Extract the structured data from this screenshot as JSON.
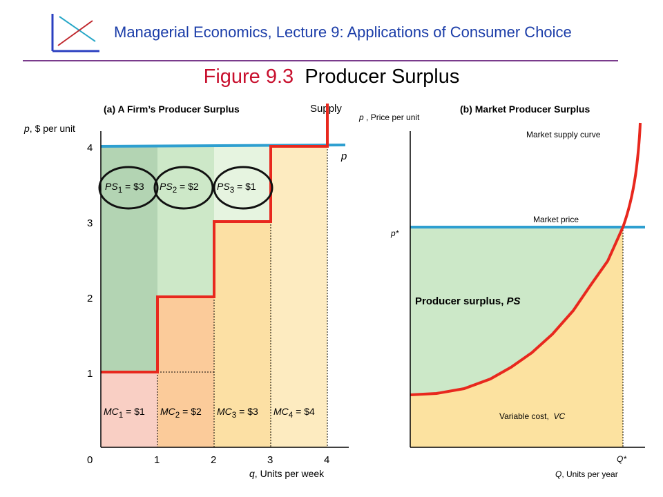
{
  "header": {
    "title": "Managerial Economics, Lecture 9: Applications of Consumer Choice",
    "logo_icon": "axes-crossing-lines-icon"
  },
  "slide_title": {
    "figure_label": "Figure 9.3",
    "text": "Producer Surplus"
  },
  "panel_a": {
    "title": "(a) A Firm’s Producer Surplus",
    "ylabel_sym": "p",
    "ylabel_text": ", $ per unit",
    "xlabel_sym": "q",
    "xlabel_text": ", Units per week",
    "y_ticks": [
      "0",
      "1",
      "2",
      "3",
      "4"
    ],
    "x_ticks": [
      "1",
      "2",
      "3",
      "4"
    ],
    "supply_label": "Supply",
    "price_label": "p",
    "ps_labels": [
      {
        "sym": "PS",
        "sub": "1",
        "val": " = $3"
      },
      {
        "sym": "PS",
        "sub": "2",
        "val": " = $2"
      },
      {
        "sym": "PS",
        "sub": "3",
        "val": " = $1"
      }
    ],
    "mc_labels": [
      {
        "sym": "MC",
        "sub": "1",
        "val": " = $1"
      },
      {
        "sym": "MC",
        "sub": "2",
        "val": " = $2"
      },
      {
        "sym": "MC",
        "sub": "3",
        "val": " = $3"
      },
      {
        "sym": "MC",
        "sub": "4",
        "val": " = $4"
      }
    ],
    "chart_data": {
      "type": "area",
      "price": 4,
      "marginal_cost": [
        1,
        2,
        3,
        4
      ],
      "producer_surplus": [
        3,
        2,
        1,
        0
      ],
      "x_range": [
        0,
        4
      ],
      "y_range": [
        0,
        4
      ]
    }
  },
  "panel_b": {
    "title": "(b) Market Producer Surplus",
    "ylabel_sym": "p",
    "ylabel_text": " , Price per unit",
    "xlabel_sym": "Q",
    "xlabel_text": ", Units per year",
    "supply_curve_label": "Market supply curve",
    "market_price_label": "Market price",
    "p_star_label": "p*",
    "q_star_label": "Q*",
    "ps_area_label": "Producer surplus,",
    "ps_area_sym": "PS",
    "vc_label": "Variable cost,",
    "vc_sym": "VC"
  },
  "colors": {
    "header_blue": "#1a3ca8",
    "title_red": "#c8102e",
    "supply_red": "#e8281e",
    "price_blue": "#2e9fd0",
    "ps1": "#b3d4b3",
    "ps2": "#cde8c8",
    "ps3": "#e6f4e0",
    "mc1": "#f9cfc4",
    "mc2": "#fbcb9a",
    "mc3": "#fce0a4",
    "mc4": "#fdebc0",
    "market_ps": "#cce8c8",
    "market_vc": "#fce2a0"
  }
}
